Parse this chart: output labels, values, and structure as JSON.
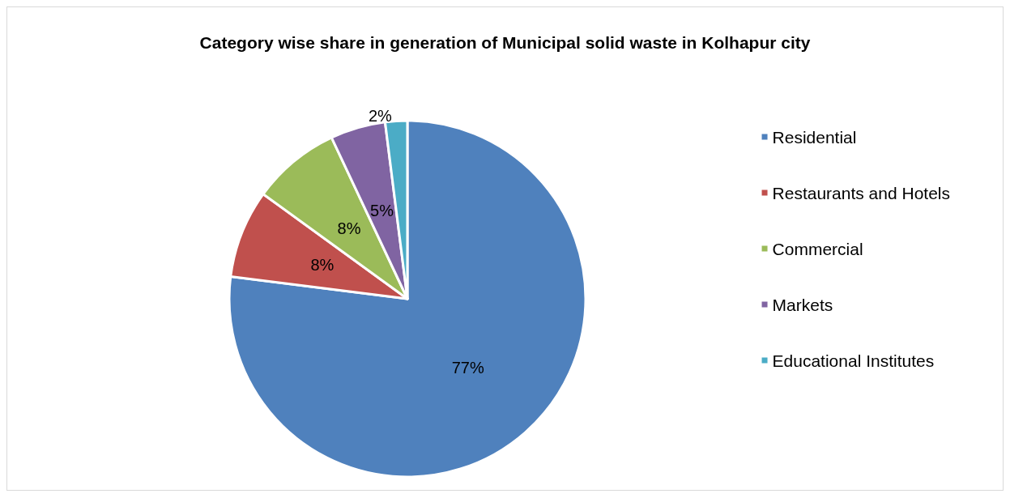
{
  "chart_data": {
    "type": "pie",
    "title": "Category wise share in generation of Municipal solid waste in Kolhapur city",
    "categories": [
      "Residential",
      "Restaurants and Hotels",
      "Commercial",
      "Markets",
      "Educational Institutes"
    ],
    "values": [
      77,
      8,
      8,
      5,
      2
    ],
    "value_labels": [
      "77%",
      "8%",
      "8%",
      "5%",
      "2%"
    ],
    "colors": [
      "#4f81bd",
      "#c0504d",
      "#9bbb59",
      "#8064a2",
      "#4bacc6"
    ],
    "legend": "right"
  }
}
